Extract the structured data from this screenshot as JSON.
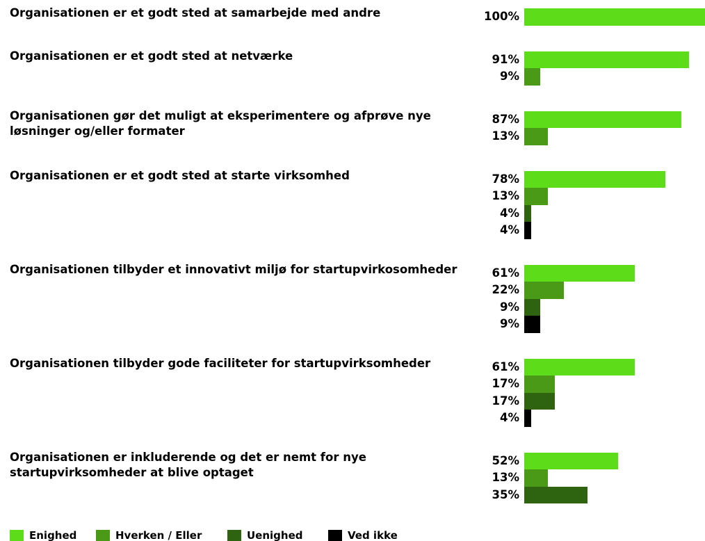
{
  "chart_data": {
    "type": "bar",
    "orientation": "horizontal",
    "categories": [
      "Organisationen er et godt sted at samarbejde med andre",
      "Organisationen er et godt sted at netværke",
      "Organisationen gør det muligt at eksperimentere og afprøve nye løsninger og/eller formater",
      "Organisationen er et godt sted at starte virksomhed",
      "Organisationen tilbyder et innovativt miljø for startupvirkosomheder",
      "Organisationen tilbyder gode faciliteter for startupvirksomheder",
      "Organisationen er inkluderende og det er nemt for nye startupvirksomheder at blive optaget"
    ],
    "series": [
      {
        "name": "Enighed",
        "color": "#5ddc1a",
        "values": [
          100,
          91,
          87,
          78,
          61,
          61,
          52
        ],
        "value_labels": [
          "100%",
          "91%",
          "87%",
          "78%",
          "61%",
          "61%",
          "52%"
        ]
      },
      {
        "name": "Hverken / Eller",
        "color": "#4a9a17",
        "values": [
          null,
          9,
          13,
          13,
          22,
          17,
          13
        ],
        "value_labels": [
          null,
          "9%",
          "13%",
          "13%",
          "22%",
          "17%",
          "13%"
        ]
      },
      {
        "name": "Uenighed",
        "color": "#2e6410",
        "values": [
          null,
          null,
          null,
          4,
          9,
          17,
          35
        ],
        "value_labels": [
          null,
          null,
          null,
          "4%",
          "9%",
          "17%",
          "35%"
        ]
      },
      {
        "name": "Ved ikke",
        "color": "#000000",
        "values": [
          null,
          null,
          null,
          4,
          9,
          4,
          null
        ],
        "value_labels": [
          null,
          null,
          null,
          "4%",
          "9%",
          "4%",
          null
        ]
      }
    ],
    "xlim": [
      0,
      100
    ]
  }
}
